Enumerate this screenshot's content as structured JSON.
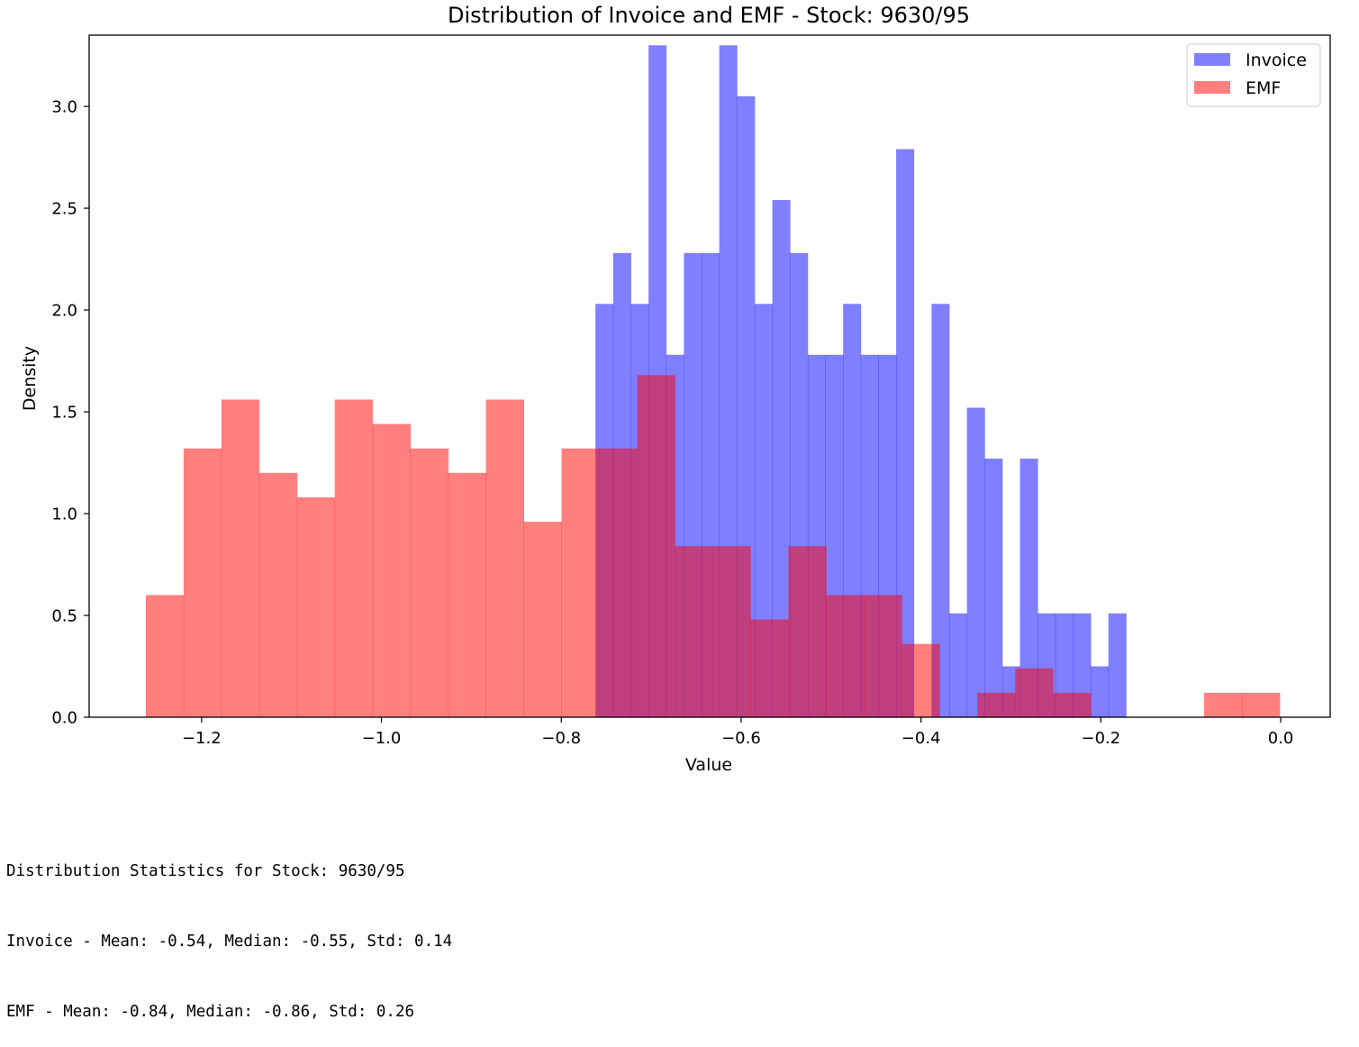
{
  "chart_data": {
    "type": "histogram",
    "title": "Distribution of Invoice and EMF - Stock: 9630/95",
    "xlabel": "Value",
    "ylabel": "Density",
    "xlim": [
      -1.325,
      0.055
    ],
    "ylim": [
      0,
      3.35
    ],
    "xticks": [
      {
        "value": -1.2,
        "label": "−1.2"
      },
      {
        "value": -1.0,
        "label": "−1.0"
      },
      {
        "value": -0.8,
        "label": "−0.8"
      },
      {
        "value": -0.6,
        "label": "−0.6"
      },
      {
        "value": -0.4,
        "label": "−0.4"
      },
      {
        "value": -0.2,
        "label": "−0.2"
      },
      {
        "value": 0.0,
        "label": "0.0"
      }
    ],
    "yticks": [
      {
        "value": 0.0,
        "label": "0.0"
      },
      {
        "value": 0.5,
        "label": "0.5"
      },
      {
        "value": 1.0,
        "label": "1.0"
      },
      {
        "value": 1.5,
        "label": "1.5"
      },
      {
        "value": 2.0,
        "label": "2.0"
      },
      {
        "value": 2.5,
        "label": "2.5"
      },
      {
        "value": 3.0,
        "label": "3.0"
      }
    ],
    "grid": false,
    "legend": "top-right",
    "series": [
      {
        "name": "Invoice",
        "color": "#0000ff",
        "opacity": 0.5,
        "bin_start": -0.762,
        "bin_width": 0.01967,
        "values": [
          2.03,
          2.28,
          2.03,
          3.3,
          1.78,
          2.28,
          2.28,
          3.3,
          3.05,
          2.03,
          2.54,
          2.28,
          1.78,
          1.78,
          2.03,
          1.78,
          1.78,
          2.79,
          0.0,
          2.03,
          0.51,
          1.52,
          1.27,
          0.25,
          1.27,
          0.51,
          0.51,
          0.51,
          0.25,
          0.51
        ]
      },
      {
        "name": "EMF",
        "color": "#ff0000",
        "opacity": 0.5,
        "bin_start": -1.262,
        "bin_width": 0.04203,
        "values": [
          0.6,
          1.32,
          1.56,
          1.2,
          1.08,
          1.56,
          1.44,
          1.32,
          1.2,
          1.56,
          0.96,
          1.32,
          1.32,
          1.68,
          0.84,
          0.84,
          0.48,
          0.84,
          0.6,
          0.6,
          0.36,
          0.0,
          0.12,
          0.24,
          0.12,
          0.0,
          0.0,
          0.0,
          0.12,
          0.12
        ]
      }
    ]
  },
  "stats": {
    "heading": "Distribution Statistics for Stock: 9630/95",
    "lines": [
      "Invoice - Mean: -0.54, Median: -0.55, Std: 0.14",
      "EMF - Mean: -0.84, Median: -0.86, Std: 0.26"
    ]
  }
}
